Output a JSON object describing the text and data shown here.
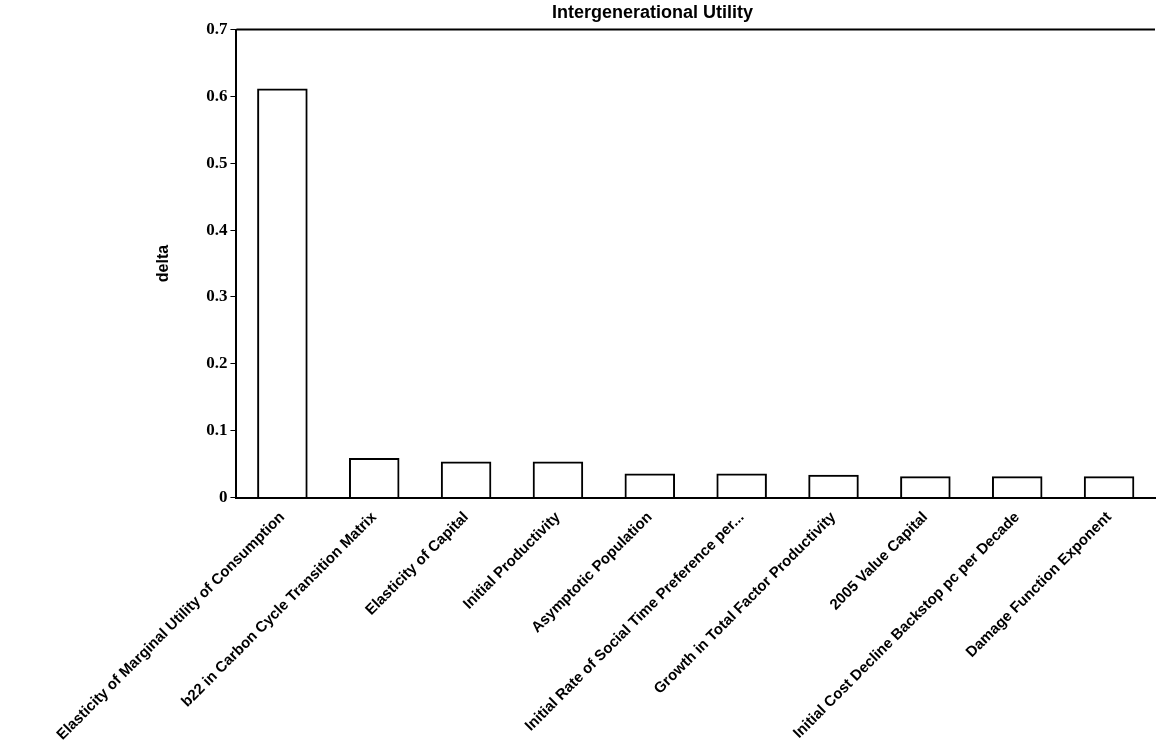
{
  "chart_data": {
    "type": "bar",
    "title": "Intergenerational Utility",
    "ylabel": "delta",
    "categories": [
      "Elasticity of Marginal Utility of Consumption",
      "b22 in Carbon Cycle Transition Matrix",
      "Elasticity of Capital",
      "Initial Productivity",
      "Asymptotic Population",
      "Initial Rate of Social Time Preference per...",
      "Growth in Total Factor Productivity",
      "2005 Value Capital",
      "Initial Cost Decline Backstop pc per Decade",
      "Damage Function Exponent"
    ],
    "values": [
      0.612,
      0.059,
      0.054,
      0.054,
      0.036,
      0.036,
      0.034,
      0.032,
      0.032,
      0.032
    ],
    "color": "#000000",
    "ylim": [
      0,
      0.7
    ],
    "yticks": [
      0,
      0.1,
      0.2,
      0.3,
      0.4,
      0.5,
      0.6,
      0.7
    ],
    "grid": false,
    "legend": false
  }
}
